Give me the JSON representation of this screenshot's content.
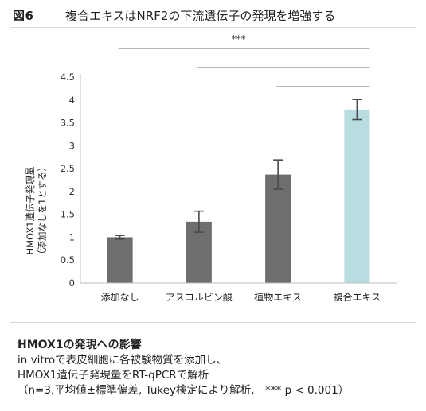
{
  "figure": {
    "number": "図6",
    "title": "複合エキスはNRF2の下流遺伝子の発現を増強する"
  },
  "colors": {
    "bar_default": "#6e6e6e",
    "bar_highlight": "#b8dde1",
    "axis": "#bfbfbf",
    "text": "#222222"
  },
  "chart_data": {
    "type": "bar",
    "categories": [
      "添加なし",
      "アスコルビン酸",
      "植物エキス",
      "複合エキス"
    ],
    "values": [
      1.0,
      1.34,
      2.37,
      3.79
    ],
    "errors": [
      0.04,
      0.23,
      0.32,
      0.22
    ],
    "bar_colors": [
      "#6e6e6e",
      "#6e6e6e",
      "#6e6e6e",
      "#b8dde1"
    ],
    "ylabel_lines": [
      "HMOX1遺伝子発現量",
      "（添加なしを1とする）"
    ],
    "ylim": [
      0,
      4.5
    ],
    "yticks": [
      "0",
      "0.5",
      "1",
      "1.5",
      "2",
      "2.5",
      "3",
      "3.5",
      "4",
      "4.5"
    ],
    "grid": false,
    "significance": {
      "label": "***",
      "comparisons": [
        {
          "from": "添加なし",
          "to": "複合エキス"
        },
        {
          "from": "アスコルビン酸",
          "to": "複合エキス"
        },
        {
          "from": "植物エキス",
          "to": "複合エキス"
        }
      ]
    }
  },
  "caption": {
    "title": "HMOX1の発現への影響",
    "lines": [
      "in vitroで表皮細胞に各被験物質を添加し、",
      "HMOX1遺伝子発現量をRT-qPCRで解析",
      "（n=3,平均値±標準偏差, Tukey検定により解析,　*** p < 0.001）"
    ]
  }
}
